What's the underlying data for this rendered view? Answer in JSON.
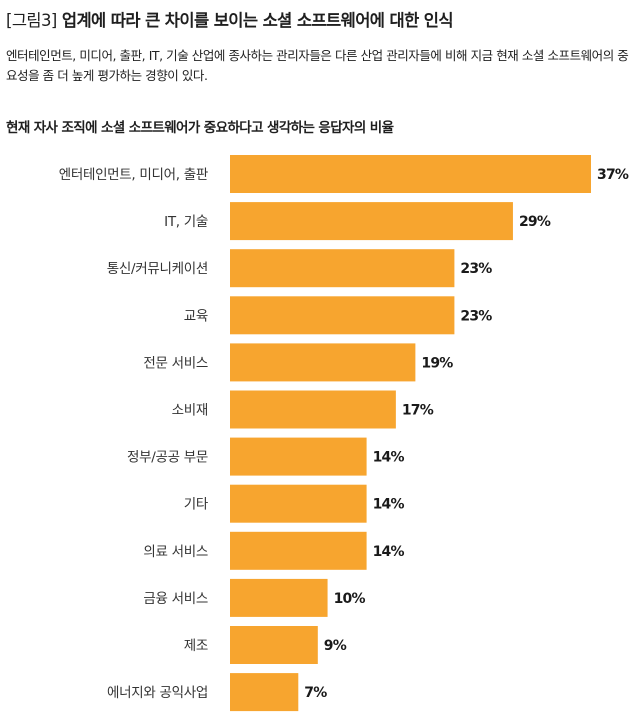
{
  "header": {
    "fig_label": "[그림3]",
    "title": "업계에 따라 큰 차이를 보이는 소셜 소프트웨어에 대한 인식",
    "subtitle": "엔터테인먼트, 미디어, 출판, IT, 기술 산업에 종사하는 관리자들은 다른 산업 관리자들에 비해 지금 현재 소셜 소프트웨어의 중요성을 좀 더 높게 평가하는 경향이 있다."
  },
  "chart_data": {
    "type": "bar",
    "orientation": "horizontal",
    "title": "현재 자사 조직에 소셜 소프트웨어가 중요하다고 생각하는 응답자의 비율",
    "categories": [
      "엔터테인먼트, 미디어, 출판",
      "IT, 기술",
      "통신/커뮤니케이션",
      "교육",
      "전문 서비스",
      "소비재",
      "정부/공공 부문",
      "기타",
      "의료 서비스",
      "금융 서비스",
      "제조",
      "에너지와 공익사업"
    ],
    "values": [
      37,
      29,
      23,
      23,
      19,
      17,
      14,
      14,
      14,
      10,
      9,
      7
    ],
    "value_labels": [
      "37%",
      "29%",
      "23%",
      "23%",
      "19%",
      "17%",
      "14%",
      "14%",
      "14%",
      "10%",
      "9%",
      "7%"
    ],
    "xlim": [
      0,
      37
    ],
    "grid": false,
    "bar_color": "#f7a52f"
  }
}
